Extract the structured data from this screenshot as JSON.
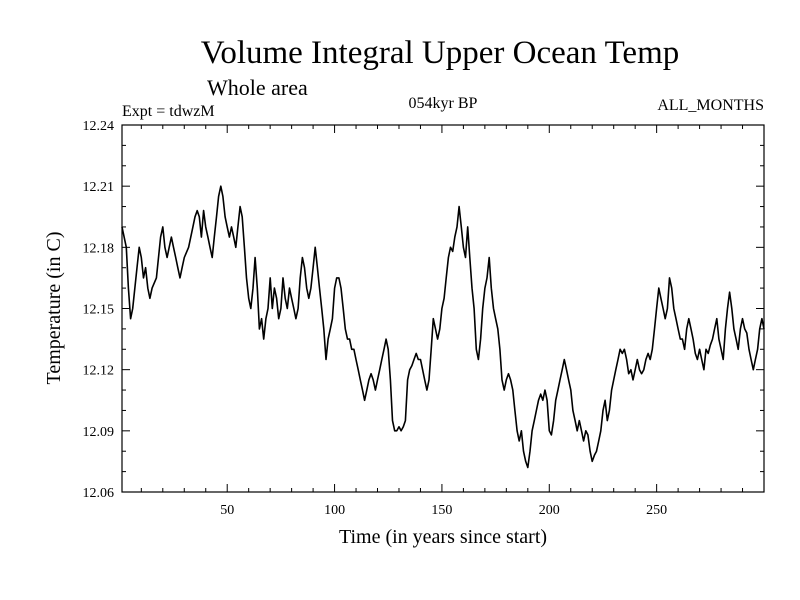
{
  "chart_data": {
    "type": "line",
    "title": "Volume Integral Upper Ocean Temp",
    "subtitle": "Whole area",
    "annotations": {
      "left": "Expt = tdwzM",
      "center": "054kyr BP",
      "right": "ALL_MONTHS"
    },
    "xlabel": "Time (in years since start)",
    "ylabel": "Temperature (in C)",
    "xlim": [
      1,
      300
    ],
    "ylim": [
      12.06,
      12.24
    ],
    "x_ticks": [
      50,
      100,
      150,
      200,
      250
    ],
    "y_ticks": [
      "12.06",
      "12.09",
      "12.12",
      "12.15",
      "12.18",
      "12.21",
      "12.24"
    ],
    "grid": false,
    "series": [
      {
        "points": [
          [
            1,
            12.19
          ],
          [
            3,
            12.18
          ],
          [
            4,
            12.16
          ],
          [
            5,
            12.145
          ],
          [
            6,
            12.15
          ],
          [
            8,
            12.17
          ],
          [
            9,
            12.18
          ],
          [
            10,
            12.175
          ],
          [
            11,
            12.165
          ],
          [
            12,
            12.17
          ],
          [
            13,
            12.16
          ],
          [
            14,
            12.155
          ],
          [
            15,
            12.16
          ],
          [
            17,
            12.165
          ],
          [
            19,
            12.185
          ],
          [
            20,
            12.19
          ],
          [
            21,
            12.18
          ],
          [
            22,
            12.175
          ],
          [
            23,
            12.18
          ],
          [
            24,
            12.185
          ],
          [
            25,
            12.18
          ],
          [
            26,
            12.175
          ],
          [
            27,
            12.17
          ],
          [
            28,
            12.165
          ],
          [
            29,
            12.17
          ],
          [
            30,
            12.175
          ],
          [
            32,
            12.18
          ],
          [
            34,
            12.19
          ],
          [
            35,
            12.195
          ],
          [
            36,
            12.198
          ],
          [
            37,
            12.195
          ],
          [
            38,
            12.185
          ],
          [
            39,
            12.198
          ],
          [
            40,
            12.19
          ],
          [
            41,
            12.185
          ],
          [
            42,
            12.18
          ],
          [
            43,
            12.175
          ],
          [
            44,
            12.185
          ],
          [
            45,
            12.195
          ],
          [
            46,
            12.205
          ],
          [
            47,
            12.21
          ],
          [
            48,
            12.205
          ],
          [
            49,
            12.195
          ],
          [
            50,
            12.19
          ],
          [
            51,
            12.185
          ],
          [
            52,
            12.19
          ],
          [
            53,
            12.185
          ],
          [
            54,
            12.18
          ],
          [
            55,
            12.19
          ],
          [
            56,
            12.2
          ],
          [
            57,
            12.195
          ],
          [
            58,
            12.18
          ],
          [
            59,
            12.165
          ],
          [
            60,
            12.155
          ],
          [
            61,
            12.15
          ],
          [
            62,
            12.16
          ],
          [
            63,
            12.175
          ],
          [
            64,
            12.16
          ],
          [
            65,
            12.14
          ],
          [
            66,
            12.145
          ],
          [
            67,
            12.135
          ],
          [
            68,
            12.145
          ],
          [
            69,
            12.15
          ],
          [
            70,
            12.165
          ],
          [
            71,
            12.15
          ],
          [
            72,
            12.16
          ],
          [
            73,
            12.155
          ],
          [
            74,
            12.145
          ],
          [
            75,
            12.15
          ],
          [
            76,
            12.165
          ],
          [
            77,
            12.155
          ],
          [
            78,
            12.15
          ],
          [
            79,
            12.16
          ],
          [
            80,
            12.155
          ],
          [
            81,
            12.15
          ],
          [
            82,
            12.145
          ],
          [
            83,
            12.15
          ],
          [
            84,
            12.165
          ],
          [
            85,
            12.175
          ],
          [
            86,
            12.17
          ],
          [
            87,
            12.16
          ],
          [
            88,
            12.155
          ],
          [
            89,
            12.16
          ],
          [
            90,
            12.17
          ],
          [
            91,
            12.18
          ],
          [
            92,
            12.17
          ],
          [
            93,
            12.16
          ],
          [
            94,
            12.15
          ],
          [
            95,
            12.14
          ],
          [
            96,
            12.125
          ],
          [
            97,
            12.135
          ],
          [
            98,
            12.14
          ],
          [
            99,
            12.145
          ],
          [
            100,
            12.16
          ],
          [
            101,
            12.165
          ],
          [
            102,
            12.165
          ],
          [
            103,
            12.16
          ],
          [
            104,
            12.15
          ],
          [
            105,
            12.14
          ],
          [
            106,
            12.135
          ],
          [
            107,
            12.135
          ],
          [
            108,
            12.13
          ],
          [
            109,
            12.13
          ],
          [
            110,
            12.125
          ],
          [
            111,
            12.12
          ],
          [
            112,
            12.115
          ],
          [
            113,
            12.11
          ],
          [
            114,
            12.105
          ],
          [
            115,
            12.11
          ],
          [
            116,
            12.115
          ],
          [
            117,
            12.118
          ],
          [
            118,
            12.115
          ],
          [
            119,
            12.11
          ],
          [
            120,
            12.115
          ],
          [
            121,
            12.12
          ],
          [
            122,
            12.125
          ],
          [
            123,
            12.13
          ],
          [
            124,
            12.135
          ],
          [
            125,
            12.13
          ],
          [
            126,
            12.115
          ],
          [
            127,
            12.095
          ],
          [
            128,
            12.09
          ],
          [
            129,
            12.09
          ],
          [
            130,
            12.092
          ],
          [
            131,
            12.09
          ],
          [
            132,
            12.092
          ],
          [
            133,
            12.095
          ],
          [
            134,
            12.115
          ],
          [
            135,
            12.12
          ],
          [
            136,
            12.122
          ],
          [
            137,
            12.125
          ],
          [
            138,
            12.128
          ],
          [
            139,
            12.125
          ],
          [
            140,
            12.125
          ],
          [
            141,
            12.12
          ],
          [
            142,
            12.115
          ],
          [
            143,
            12.11
          ],
          [
            144,
            12.115
          ],
          [
            145,
            12.13
          ],
          [
            146,
            12.145
          ],
          [
            147,
            12.14
          ],
          [
            148,
            12.135
          ],
          [
            149,
            12.14
          ],
          [
            150,
            12.15
          ],
          [
            151,
            12.155
          ],
          [
            152,
            12.165
          ],
          [
            153,
            12.175
          ],
          [
            154,
            12.18
          ],
          [
            155,
            12.178
          ],
          [
            156,
            12.185
          ],
          [
            157,
            12.19
          ],
          [
            158,
            12.2
          ],
          [
            159,
            12.19
          ],
          [
            160,
            12.18
          ],
          [
            161,
            12.175
          ],
          [
            162,
            12.19
          ],
          [
            163,
            12.175
          ],
          [
            164,
            12.16
          ],
          [
            165,
            12.15
          ],
          [
            166,
            12.13
          ],
          [
            167,
            12.125
          ],
          [
            168,
            12.135
          ],
          [
            169,
            12.15
          ],
          [
            170,
            12.16
          ],
          [
            171,
            12.165
          ],
          [
            172,
            12.175
          ],
          [
            173,
            12.16
          ],
          [
            174,
            12.15
          ],
          [
            175,
            12.145
          ],
          [
            176,
            12.14
          ],
          [
            177,
            12.13
          ],
          [
            178,
            12.115
          ],
          [
            179,
            12.11
          ],
          [
            180,
            12.115
          ],
          [
            181,
            12.118
          ],
          [
            182,
            12.115
          ],
          [
            183,
            12.11
          ],
          [
            184,
            12.1
          ],
          [
            185,
            12.09
          ],
          [
            186,
            12.085
          ],
          [
            187,
            12.09
          ],
          [
            188,
            12.08
          ],
          [
            189,
            12.075
          ],
          [
            190,
            12.072
          ],
          [
            191,
            12.08
          ],
          [
            192,
            12.09
          ],
          [
            193,
            12.095
          ],
          [
            194,
            12.1
          ],
          [
            195,
            12.105
          ],
          [
            196,
            12.108
          ],
          [
            197,
            12.105
          ],
          [
            198,
            12.11
          ],
          [
            199,
            12.105
          ],
          [
            200,
            12.09
          ],
          [
            201,
            12.088
          ],
          [
            202,
            12.095
          ],
          [
            203,
            12.105
          ],
          [
            204,
            12.11
          ],
          [
            205,
            12.115
          ],
          [
            206,
            12.12
          ],
          [
            207,
            12.125
          ],
          [
            208,
            12.12
          ],
          [
            209,
            12.115
          ],
          [
            210,
            12.11
          ],
          [
            211,
            12.1
          ],
          [
            212,
            12.095
          ],
          [
            213,
            12.09
          ],
          [
            214,
            12.095
          ],
          [
            215,
            12.09
          ],
          [
            216,
            12.085
          ],
          [
            217,
            12.09
          ],
          [
            218,
            12.088
          ],
          [
            219,
            12.08
          ],
          [
            220,
            12.075
          ],
          [
            221,
            12.078
          ],
          [
            222,
            12.08
          ],
          [
            223,
            12.085
          ],
          [
            224,
            12.09
          ],
          [
            225,
            12.1
          ],
          [
            226,
            12.105
          ],
          [
            227,
            12.095
          ],
          [
            228,
            12.1
          ],
          [
            229,
            12.11
          ],
          [
            230,
            12.115
          ],
          [
            231,
            12.12
          ],
          [
            232,
            12.125
          ],
          [
            233,
            12.13
          ],
          [
            234,
            12.128
          ],
          [
            235,
            12.13
          ],
          [
            236,
            12.125
          ],
          [
            237,
            12.118
          ],
          [
            238,
            12.12
          ],
          [
            239,
            12.115
          ],
          [
            240,
            12.12
          ],
          [
            241,
            12.125
          ],
          [
            242,
            12.12
          ],
          [
            243,
            12.118
          ],
          [
            244,
            12.12
          ],
          [
            245,
            12.125
          ],
          [
            246,
            12.128
          ],
          [
            247,
            12.125
          ],
          [
            248,
            12.13
          ],
          [
            249,
            12.14
          ],
          [
            250,
            12.15
          ],
          [
            251,
            12.16
          ],
          [
            252,
            12.155
          ],
          [
            253,
            12.15
          ],
          [
            254,
            12.145
          ],
          [
            255,
            12.15
          ],
          [
            256,
            12.165
          ],
          [
            257,
            12.16
          ],
          [
            258,
            12.15
          ],
          [
            259,
            12.145
          ],
          [
            260,
            12.14
          ],
          [
            261,
            12.135
          ],
          [
            262,
            12.135
          ],
          [
            263,
            12.13
          ],
          [
            264,
            12.14
          ],
          [
            265,
            12.145
          ],
          [
            266,
            12.14
          ],
          [
            267,
            12.135
          ],
          [
            268,
            12.128
          ],
          [
            269,
            12.125
          ],
          [
            270,
            12.13
          ],
          [
            271,
            12.125
          ],
          [
            272,
            12.12
          ],
          [
            273,
            12.13
          ],
          [
            274,
            12.128
          ],
          [
            275,
            12.132
          ],
          [
            276,
            12.135
          ],
          [
            277,
            12.14
          ],
          [
            278,
            12.145
          ],
          [
            279,
            12.135
          ],
          [
            280,
            12.13
          ],
          [
            281,
            12.125
          ],
          [
            282,
            12.14
          ],
          [
            283,
            12.15
          ],
          [
            284,
            12.158
          ],
          [
            285,
            12.15
          ],
          [
            286,
            12.14
          ],
          [
            287,
            12.135
          ],
          [
            288,
            12.13
          ],
          [
            289,
            12.14
          ],
          [
            290,
            12.145
          ],
          [
            291,
            12.14
          ],
          [
            292,
            12.138
          ],
          [
            293,
            12.13
          ],
          [
            294,
            12.125
          ],
          [
            295,
            12.12
          ],
          [
            296,
            12.125
          ],
          [
            297,
            12.13
          ],
          [
            298,
            12.14
          ],
          [
            299,
            12.145
          ],
          [
            300,
            12.14
          ]
        ]
      }
    ]
  }
}
